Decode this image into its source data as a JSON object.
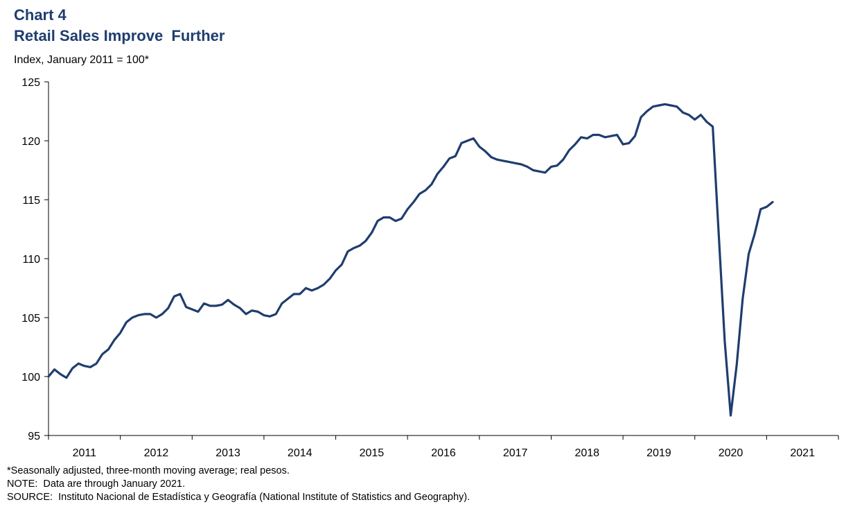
{
  "header": {
    "chart_label": "Chart 4",
    "title": "Retail Sales Improve  Further",
    "ylabel": "Index, January 2011 = 100*"
  },
  "footnotes": {
    "note1": "*Seasonally adjusted, three-month moving average; real pesos.",
    "note2": "NOTE:  Data are through January 2021.",
    "note3": "SOURCE:  Instituto Nacional de Estadística y Geografía (National Institute of Statistics and Geography)."
  },
  "colors": {
    "line": "#1f3d6e",
    "title": "#1f3d6e",
    "axis": "#000000"
  },
  "chart_data": {
    "type": "line",
    "title": "Retail Sales Improve  Further",
    "ylabel": "Index, January 2011 = 100*",
    "xlabel": "",
    "ylim": [
      95,
      125
    ],
    "yticks": [
      95,
      100,
      105,
      110,
      115,
      120,
      125
    ],
    "xlim": [
      2011,
      2022
    ],
    "x_tick_labels": [
      "2011",
      "2012",
      "2013",
      "2014",
      "2015",
      "2016",
      "2017",
      "2018",
      "2019",
      "2020",
      "2021"
    ],
    "grid": false,
    "legend": "none",
    "series": [
      {
        "values": [
          100.0,
          100.6,
          100.2,
          99.9,
          100.7,
          101.1,
          100.9,
          100.8,
          101.1,
          101.9,
          102.3,
          103.1,
          103.7,
          104.6,
          105.0,
          105.2,
          105.3,
          105.3,
          105.0,
          105.3,
          105.8,
          106.8,
          107.0,
          105.9,
          105.7,
          105.5,
          106.2,
          106.0,
          106.0,
          106.1,
          106.5,
          106.1,
          105.8,
          105.3,
          105.6,
          105.5,
          105.2,
          105.1,
          105.3,
          106.2,
          106.6,
          107.0,
          107.0,
          107.5,
          107.3,
          107.5,
          107.8,
          108.3,
          109.0,
          109.5,
          110.6,
          110.9,
          111.1,
          111.5,
          112.2,
          113.2,
          113.5,
          113.5,
          113.2,
          113.4,
          114.2,
          114.8,
          115.5,
          115.8,
          116.3,
          117.2,
          117.8,
          118.5,
          118.7,
          119.8,
          120.0,
          120.2,
          119.5,
          119.1,
          118.6,
          118.4,
          118.3,
          118.2,
          118.1,
          118.0,
          117.8,
          117.5,
          117.4,
          117.3,
          117.8,
          117.9,
          118.4,
          119.2,
          119.7,
          120.3,
          120.2,
          120.5,
          120.5,
          120.3,
          120.4,
          120.5,
          119.7,
          119.8,
          120.4,
          122.0,
          122.5,
          122.9,
          123.0,
          123.1,
          123.0,
          122.9,
          122.4,
          122.2,
          121.8,
          122.2,
          121.6,
          121.2,
          112.0,
          103.0,
          96.7,
          101.0,
          106.6,
          110.4,
          112.1,
          114.2,
          114.4,
          114.8
        ]
      }
    ]
  }
}
